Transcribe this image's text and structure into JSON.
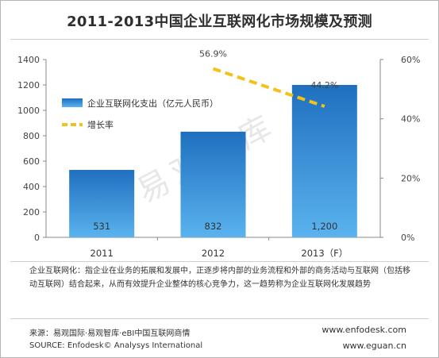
{
  "title": "2011-2013中国企业互联网化市场规模及预测",
  "watermark": "易观智库",
  "colors": {
    "bar_top": "#1f6fbf",
    "bar_bottom": "#5ab3ee",
    "line": "#f2c21b",
    "axis": "#888888",
    "grid": "#c8c8c8"
  },
  "chart_data": {
    "type": "bar",
    "categories": [
      "2011",
      "2012",
      "2013（F）"
    ],
    "series": [
      {
        "name": "企业互联网化支出（亿元人民币）",
        "type": "bar",
        "axis": "left",
        "values": [
          531,
          832,
          1200
        ],
        "labels": [
          "531",
          "832",
          "1,200"
        ]
      },
      {
        "name": "增长率",
        "type": "line",
        "axis": "right",
        "values": [
          null,
          56.9,
          44.2
        ],
        "labels": [
          "",
          "56.9%",
          "44.2%"
        ]
      }
    ],
    "y_left": {
      "ylim": [
        0,
        1400
      ],
      "ticks": [
        0,
        200,
        400,
        600,
        800,
        1000,
        1200,
        1400
      ],
      "tick_labels": [
        "0",
        "200",
        "400",
        "600",
        "800",
        "1000",
        "1200",
        "1400"
      ]
    },
    "y_right": {
      "ylim": [
        0,
        60
      ],
      "ticks": [
        0,
        20,
        40,
        60
      ],
      "tick_labels": [
        "0%",
        "20%",
        "40%",
        "60%"
      ]
    },
    "grid": false,
    "legend_position": "upper-left"
  },
  "note": "企业互联网化：指企业在业务的拓展和发展中，正逐步将内部的业务流程和外部的商务活动与互联网（包括移动互联网）结合起来，从而有效提升企业整体的核心竞争力，这一趋势称为企业互联网化发展趋势",
  "source": {
    "cn": "来源：易观国际·易观智库·eBI中国互联网商情",
    "en": "SOURCE: Enfodesk© Analysys International"
  },
  "websites": [
    "www.enfodesk.com",
    "www.eguan.cn"
  ]
}
